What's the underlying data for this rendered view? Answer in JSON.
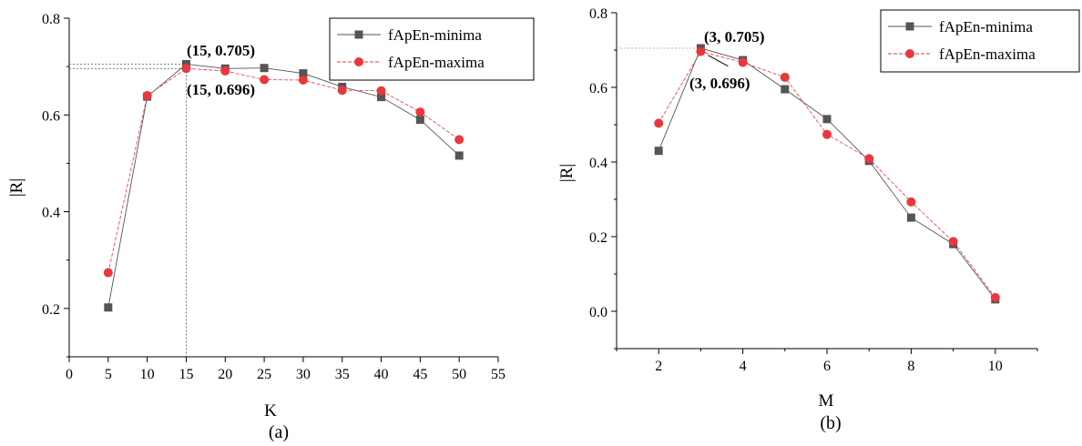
{
  "chart_data": [
    {
      "type": "line",
      "caption": "(a)",
      "xlabel": "K",
      "ylabel": "|R|",
      "xlim": [
        0,
        55
      ],
      "ylim": [
        0.1,
        0.8
      ],
      "xticks": [
        0,
        5,
        10,
        15,
        20,
        25,
        30,
        35,
        40,
        45,
        50,
        55
      ],
      "yticks": [
        0.2,
        0.4,
        0.6,
        0.8
      ],
      "legend_position": "top-right",
      "series": [
        {
          "name": "fApEn-minima",
          "color": "#555555",
          "marker": "square",
          "x": [
            5,
            10,
            15,
            20,
            25,
            30,
            35,
            40,
            45,
            50
          ],
          "y": [
            0.202,
            0.638,
            0.705,
            0.696,
            0.697,
            0.686,
            0.658,
            0.637,
            0.59,
            0.516
          ]
        },
        {
          "name": "fApEn-maxima",
          "color": "#e8383d",
          "marker": "circle",
          "x": [
            5,
            10,
            15,
            20,
            25,
            30,
            35,
            40,
            45,
            50
          ],
          "y": [
            0.274,
            0.64,
            0.696,
            0.691,
            0.673,
            0.672,
            0.651,
            0.65,
            0.606,
            0.549
          ]
        }
      ],
      "reference_lines": [
        {
          "x": 15,
          "y": 0.705
        },
        {
          "x": 15,
          "y": 0.696
        }
      ],
      "annotations": [
        "(15, 0.705)",
        "(15, 0.696)"
      ]
    },
    {
      "type": "line",
      "caption": "(b)",
      "xlabel": "M",
      "ylabel": "|R|",
      "xlim": [
        1,
        11
      ],
      "ylim": [
        -0.1,
        0.8
      ],
      "xticks": [
        2,
        4,
        6,
        8,
        10
      ],
      "yticks": [
        0.0,
        0.2,
        0.4,
        0.6,
        0.8
      ],
      "ytick_labels": [
        "0.0",
        "0.2",
        "0.4",
        "0.6",
        "0.8"
      ],
      "legend_position": "top-right",
      "series": [
        {
          "name": "fApEn-minima",
          "color": "#555555",
          "marker": "square",
          "x": [
            2,
            3,
            4,
            5,
            6,
            7,
            8,
            9,
            10
          ],
          "y": [
            0.43,
            0.705,
            0.673,
            0.595,
            0.515,
            0.403,
            0.251,
            0.18,
            0.032
          ]
        },
        {
          "name": "fApEn-maxima",
          "color": "#e8383d",
          "marker": "circle",
          "x": [
            2,
            3,
            4,
            5,
            6,
            7,
            8,
            9,
            10
          ],
          "y": [
            0.504,
            0.696,
            0.667,
            0.627,
            0.474,
            0.409,
            0.293,
            0.187,
            0.037
          ]
        }
      ],
      "reference_lines": [
        {
          "y": 0.705
        }
      ],
      "annotations": [
        "(3, 0.705)",
        "(3, 0.696)"
      ]
    }
  ]
}
